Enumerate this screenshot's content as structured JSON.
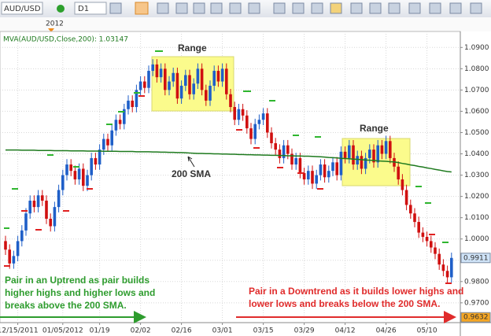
{
  "chart_data": {
    "type": "candlestick",
    "symbol": "AUD/USD",
    "timeframe": "D1",
    "year_marker": "2012",
    "indicator_label": "MVA(AUD/USD,Close,200): 1.03147",
    "up_color": "#1f5fc8",
    "down_color": "#d01010",
    "sma_color": "#1e7a1e",
    "grid": true,
    "ylim": [
      0.9607,
      1.0975
    ],
    "yticks": [
      {
        "value": 1.09,
        "label": "1.0900"
      },
      {
        "value": 1.08,
        "label": "1.0800"
      },
      {
        "value": 1.07,
        "label": "1.0700"
      },
      {
        "value": 1.06,
        "label": "1.0600"
      },
      {
        "value": 1.05,
        "label": "1.0500"
      },
      {
        "value": 1.04,
        "label": "1.0400"
      },
      {
        "value": 1.03,
        "label": "1.0300"
      },
      {
        "value": 1.02,
        "label": "1.0200"
      },
      {
        "value": 1.01,
        "label": "1.0100"
      },
      {
        "value": 1.0,
        "label": "1.0000"
      },
      {
        "value": 0.99,
        "label": "0.9900"
      },
      {
        "value": 0.98,
        "label": "0.9800"
      },
      {
        "value": 0.97,
        "label": "0.9700"
      }
    ],
    "price_tags": [
      {
        "value": 0.9911,
        "color": "#cfe3f7"
      },
      {
        "value": 0.9632,
        "color": "#f5a623"
      }
    ],
    "categories": [
      null,
      null,
      null,
      "12/15/2011",
      null,
      null,
      null,
      null,
      null,
      null,
      null,
      null,
      null,
      null,
      "01/05/2012",
      null,
      null,
      null,
      null,
      null,
      null,
      null,
      null,
      "01/19",
      null,
      null,
      null,
      null,
      null,
      null,
      null,
      null,
      null,
      "02/02",
      null,
      null,
      null,
      null,
      null,
      null,
      null,
      null,
      null,
      "02/16",
      null,
      null,
      null,
      null,
      null,
      null,
      null,
      null,
      null,
      "03/01",
      null,
      null,
      null,
      null,
      null,
      null,
      null,
      null,
      null,
      "03/15",
      null,
      null,
      null,
      null,
      null,
      null,
      null,
      null,
      null,
      "03/29",
      null,
      null,
      null,
      null,
      null,
      null,
      null,
      null,
      null,
      "04/12",
      null,
      null,
      null,
      null,
      null,
      null,
      null,
      null,
      null,
      "04/26",
      null,
      null,
      null,
      null,
      null,
      null,
      null,
      null,
      null,
      "05/10",
      null,
      null,
      null,
      null,
      null,
      null
    ],
    "open": [
      0.999,
      0.995,
      0.9885,
      0.992,
      0.999,
      1.004,
      1.012,
      1.018,
      1.015,
      1.0205,
      1.018,
      1.0095,
      1.006,
      1.015,
      1.023,
      1.03,
      1.035,
      1.032,
      1.028,
      1.033,
      1.025,
      1.03,
      1.038,
      1.035,
      1.042,
      1.047,
      1.044,
      1.051,
      1.056,
      1.054,
      1.061,
      1.065,
      1.062,
      1.07,
      1.074,
      1.071,
      1.079,
      1.082,
      1.076,
      1.08,
      1.07,
      1.074,
      1.078,
      1.066,
      1.072,
      1.077,
      1.068,
      1.073,
      1.08,
      1.07,
      1.065,
      1.072,
      1.079,
      1.074,
      1.08,
      1.068,
      1.062,
      1.056,
      1.061,
      1.058,
      1.052,
      1.047,
      1.054,
      1.056,
      1.059,
      1.05,
      1.045,
      1.042,
      1.038,
      1.044,
      1.04,
      1.035,
      1.038,
      1.031,
      1.028,
      1.032,
      1.026,
      1.03,
      1.035,
      1.029,
      1.032,
      1.036,
      1.03,
      1.041,
      1.038,
      1.044,
      1.035,
      1.039,
      1.033,
      1.038,
      1.042,
      1.036,
      1.044,
      1.04,
      1.046,
      1.038,
      1.034,
      1.028,
      1.023,
      1.016,
      1.012,
      1.008,
      1.003,
      1.001,
      0.999,
      0.996,
      0.993,
      0.988,
      0.985,
      0.982
    ],
    "high": [
      1.0015,
      0.9975,
      0.9945,
      1.0015,
      1.0065,
      1.0145,
      1.0205,
      1.0205,
      1.023,
      1.023,
      1.0205,
      1.012,
      1.0175,
      1.0255,
      1.0325,
      1.0375,
      1.0375,
      1.0345,
      1.0355,
      1.0355,
      1.0325,
      1.0405,
      1.0405,
      1.0445,
      1.0495,
      1.0495,
      1.0535,
      1.0585,
      1.0585,
      1.0635,
      1.0675,
      1.0675,
      1.0725,
      1.0765,
      1.0765,
      1.0815,
      1.0845,
      1.0845,
      1.0825,
      1.0825,
      1.0765,
      1.0805,
      1.0805,
      1.0745,
      1.0795,
      1.0795,
      1.0755,
      1.0825,
      1.0825,
      1.0725,
      1.0745,
      1.0815,
      1.0815,
      1.0825,
      1.0825,
      1.0705,
      1.0645,
      1.0635,
      1.0635,
      1.0605,
      1.0545,
      1.0565,
      1.0585,
      1.0615,
      1.0615,
      1.0525,
      1.0475,
      1.0445,
      1.0465,
      1.0465,
      1.0425,
      1.0405,
      1.0405,
      1.0335,
      1.0345,
      1.0345,
      1.0325,
      1.0375,
      1.0375,
      1.0345,
      1.0385,
      1.0385,
      1.0435,
      1.0435,
      1.0465,
      1.0465,
      1.0415,
      1.0415,
      1.0405,
      1.0445,
      1.0445,
      1.0465,
      1.0465,
      1.0485,
      1.0485,
      1.0405,
      1.0365,
      1.0305,
      1.0255,
      1.0185,
      1.0145,
      1.0105,
      1.0055,
      1.0035,
      1.0015,
      0.9985,
      0.9955,
      0.9905,
      0.9875,
      0.9936
    ],
    "low": [
      0.9925,
      0.986,
      0.986,
      0.9895,
      0.9965,
      1.0015,
      1.0095,
      1.0125,
      1.0125,
      1.0155,
      1.007,
      1.0035,
      1.0035,
      1.0125,
      1.0205,
      1.0275,
      1.0295,
      1.0255,
      1.0255,
      1.0225,
      1.0225,
      1.0275,
      1.0325,
      1.0325,
      1.0395,
      1.0415,
      1.0415,
      1.0485,
      1.0515,
      1.0515,
      1.0585,
      1.0595,
      1.0595,
      1.0675,
      1.0685,
      1.0685,
      1.0765,
      1.0735,
      1.0735,
      1.0675,
      1.0675,
      1.0715,
      1.0635,
      1.0635,
      1.0695,
      1.0655,
      1.0655,
      1.0705,
      1.0675,
      1.0625,
      1.0625,
      1.0695,
      1.0715,
      1.0715,
      1.0655,
      1.0595,
      1.0535,
      1.0535,
      1.0555,
      1.0495,
      1.0445,
      1.0445,
      1.0515,
      1.0535,
      1.0475,
      1.0425,
      1.0395,
      1.0355,
      1.0355,
      1.0375,
      1.0325,
      1.0325,
      1.0285,
      1.0255,
      1.0255,
      1.0235,
      1.0235,
      1.0275,
      1.0265,
      1.0265,
      1.0295,
      1.0275,
      1.0275,
      1.0355,
      1.0355,
      1.0325,
      1.0325,
      1.0305,
      1.0305,
      1.0355,
      1.0335,
      1.0335,
      1.0375,
      1.0375,
      1.0355,
      1.0315,
      1.0255,
      1.0205,
      1.0135,
      1.0095,
      1.0055,
      1.0005,
      0.9985,
      0.9965,
      0.9935,
      0.9905,
      0.9855,
      0.9825,
      0.9795,
      0.9795
    ],
    "close": [
      0.995,
      0.9885,
      0.992,
      0.999,
      1.004,
      1.012,
      1.018,
      1.015,
      1.0205,
      1.018,
      1.0095,
      1.006,
      1.015,
      1.023,
      1.03,
      1.035,
      1.032,
      1.028,
      1.033,
      1.025,
      1.03,
      1.038,
      1.035,
      1.042,
      1.047,
      1.044,
      1.051,
      1.056,
      1.054,
      1.061,
      1.065,
      1.062,
      1.07,
      1.074,
      1.071,
      1.079,
      1.082,
      1.076,
      1.08,
      1.07,
      1.074,
      1.078,
      1.066,
      1.072,
      1.077,
      1.068,
      1.073,
      1.08,
      1.07,
      1.065,
      1.072,
      1.079,
      1.074,
      1.08,
      1.068,
      1.062,
      1.056,
      1.061,
      1.058,
      1.052,
      1.047,
      1.054,
      1.056,
      1.059,
      1.05,
      1.045,
      1.042,
      1.038,
      1.044,
      1.04,
      1.035,
      1.038,
      1.031,
      1.028,
      1.032,
      1.026,
      1.03,
      1.035,
      1.029,
      1.032,
      1.036,
      1.03,
      1.041,
      1.038,
      1.044,
      1.035,
      1.039,
      1.033,
      1.038,
      1.042,
      1.036,
      1.044,
      1.04,
      1.046,
      1.038,
      1.034,
      1.028,
      1.023,
      1.016,
      1.012,
      1.008,
      1.003,
      1.001,
      0.999,
      0.996,
      0.993,
      0.988,
      0.985,
      0.982,
      0.9911
    ],
    "sma": [
      1.0418,
      1.0418,
      1.0418,
      1.0418,
      1.0417,
      1.0417,
      1.0417,
      1.0417,
      1.0416,
      1.0416,
      1.0416,
      1.0416,
      1.0415,
      1.0415,
      1.0415,
      1.0415,
      1.0414,
      1.0414,
      1.0414,
      1.0414,
      1.0413,
      1.0413,
      1.0413,
      1.0413,
      1.0412,
      1.0412,
      1.0412,
      1.0412,
      1.0411,
      1.0411,
      1.0411,
      1.0411,
      1.041,
      1.041,
      1.041,
      1.041,
      1.0409,
      1.0409,
      1.0408,
      1.0408,
      1.0407,
      1.0407,
      1.0406,
      1.0406,
      1.0405,
      1.0404,
      1.0403,
      1.0402,
      1.0402,
      1.0401,
      1.0401,
      1.04,
      1.04,
      1.0399,
      1.0399,
      1.0398,
      1.0398,
      1.0397,
      1.0397,
      1.0396,
      1.0396,
      1.0395,
      1.0395,
      1.0394,
      1.0394,
      1.0393,
      1.0393,
      1.0392,
      1.0392,
      1.0391,
      1.0391,
      1.039,
      1.039,
      1.0389,
      1.0389,
      1.0388,
      1.0387,
      1.0386,
      1.0385,
      1.0383,
      1.0382,
      1.0381,
      1.0379,
      1.0378,
      1.0377,
      1.0375,
      1.0374,
      1.0373,
      1.0371,
      1.037,
      1.0369,
      1.0367,
      1.0366,
      1.0365,
      1.0363,
      1.0362,
      1.0359,
      1.0355,
      1.0352,
      1.0348,
      1.0345,
      1.0341,
      1.0338,
      1.0334,
      1.0331,
      1.0327,
      1.0324,
      1.032,
      1.0317,
      1.0315
    ],
    "annotations": {
      "range_1": "Range",
      "range_2": "Range",
      "sma_label": "200 SMA",
      "uptrend": [
        "Pair in an Uptrend as pair builds",
        "higher highs and higher lows and",
        "breaks above the 200 SMA."
      ],
      "downtrend": [
        "Pair in a Downtrend as it builds lower highs and",
        "lower lows and breaks below the 200  SMA."
      ]
    }
  }
}
